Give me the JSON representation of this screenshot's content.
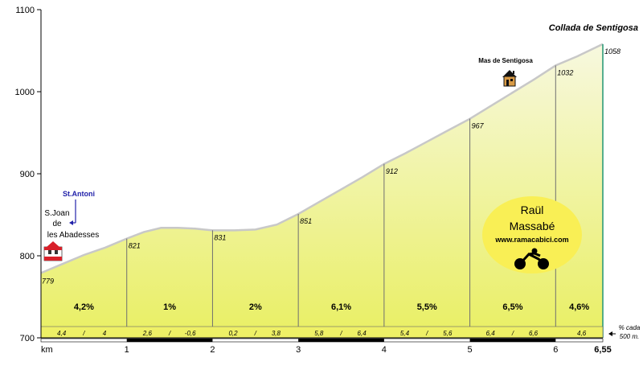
{
  "chart_data": {
    "type": "area",
    "title": "Collada de Sentigosa",
    "xlabel": "km",
    "ylabel": "",
    "xlim": [
      0,
      6.55
    ],
    "ylim": [
      700,
      1100
    ],
    "y_ticks": [
      700,
      800,
      900,
      1000,
      1100
    ],
    "x_ticks": [
      {
        "v": 1,
        "label": "1"
      },
      {
        "v": 2,
        "label": "2"
      },
      {
        "v": 3,
        "label": "3"
      },
      {
        "v": 4,
        "label": "4"
      },
      {
        "v": 5,
        "label": "5"
      },
      {
        "v": 6,
        "label": "6"
      },
      {
        "v": 6.55,
        "label": "6,55"
      }
    ],
    "profile": [
      {
        "x": 0,
        "y": 779
      },
      {
        "x": 0.25,
        "y": 790
      },
      {
        "x": 0.5,
        "y": 801
      },
      {
        "x": 0.75,
        "y": 810
      },
      {
        "x": 1,
        "y": 821
      },
      {
        "x": 1.2,
        "y": 829
      },
      {
        "x": 1.4,
        "y": 834
      },
      {
        "x": 1.6,
        "y": 834
      },
      {
        "x": 1.8,
        "y": 833
      },
      {
        "x": 2,
        "y": 831
      },
      {
        "x": 2.25,
        "y": 831
      },
      {
        "x": 2.5,
        "y": 832
      },
      {
        "x": 2.75,
        "y": 838
      },
      {
        "x": 3,
        "y": 851
      },
      {
        "x": 3.25,
        "y": 866
      },
      {
        "x": 3.5,
        "y": 881
      },
      {
        "x": 3.75,
        "y": 896
      },
      {
        "x": 4,
        "y": 912
      },
      {
        "x": 4.25,
        "y": 925
      },
      {
        "x": 4.5,
        "y": 939
      },
      {
        "x": 4.75,
        "y": 953
      },
      {
        "x": 5,
        "y": 967
      },
      {
        "x": 5.25,
        "y": 983
      },
      {
        "x": 5.5,
        "y": 999
      },
      {
        "x": 5.75,
        "y": 1015
      },
      {
        "x": 6,
        "y": 1032
      },
      {
        "x": 6.25,
        "y": 1043
      },
      {
        "x": 6.55,
        "y": 1058
      }
    ],
    "km_points": [
      {
        "x": 0,
        "elev": "779"
      },
      {
        "x": 1,
        "elev": "821"
      },
      {
        "x": 2,
        "elev": "831"
      },
      {
        "x": 3,
        "elev": "851"
      },
      {
        "x": 4,
        "elev": "912"
      },
      {
        "x": 5,
        "elev": "967"
      },
      {
        "x": 6,
        "elev": "1032"
      },
      {
        "x": 6.55,
        "elev": "1058"
      }
    ],
    "segments": [
      {
        "from": 0,
        "to": 1,
        "grade": "4,2%",
        "sub": [
          "4,4",
          "/",
          "4"
        ]
      },
      {
        "from": 1,
        "to": 2,
        "grade": "1%",
        "sub": [
          "2,6",
          "/",
          "-0,6"
        ]
      },
      {
        "from": 2,
        "to": 3,
        "grade": "2%",
        "sub": [
          "0,2",
          "/",
          "3,8"
        ]
      },
      {
        "from": 3,
        "to": 4,
        "grade": "6,1%",
        "sub": [
          "5,8",
          "/",
          "6,4"
        ]
      },
      {
        "from": 4,
        "to": 5,
        "grade": "5,5%",
        "sub": [
          "5,4",
          "/",
          "5,6"
        ]
      },
      {
        "from": 5,
        "to": 6,
        "grade": "6,5%",
        "sub": [
          "6,4",
          "/",
          "6,6"
        ]
      },
      {
        "from": 6,
        "to": 6.55,
        "grade": "4,6%",
        "sub": [
          "4,6"
        ]
      }
    ],
    "sub_note": [
      "% cada",
      "500 m."
    ],
    "annotations": {
      "start_place": [
        "S.Joan",
        "de",
        "les Abadesses"
      ],
      "start_link": "St.Antoni",
      "waypoint": {
        "label": "Mas de Sentigosa",
        "x": 5.5
      }
    },
    "credit": {
      "name_line1": "Raül",
      "name_line2": "Massabé",
      "url": "www.ramacabici.com"
    },
    "colors": {
      "fill_top": "#f7f8df",
      "fill_bottom": "#e9ef63",
      "profile_stroke": "#c8c8c8",
      "right_edge": "#2e9c7a",
      "credit_bg": "#f9ef55",
      "link": "#2222aa",
      "marker": "#d8202a"
    },
    "grid": false
  }
}
